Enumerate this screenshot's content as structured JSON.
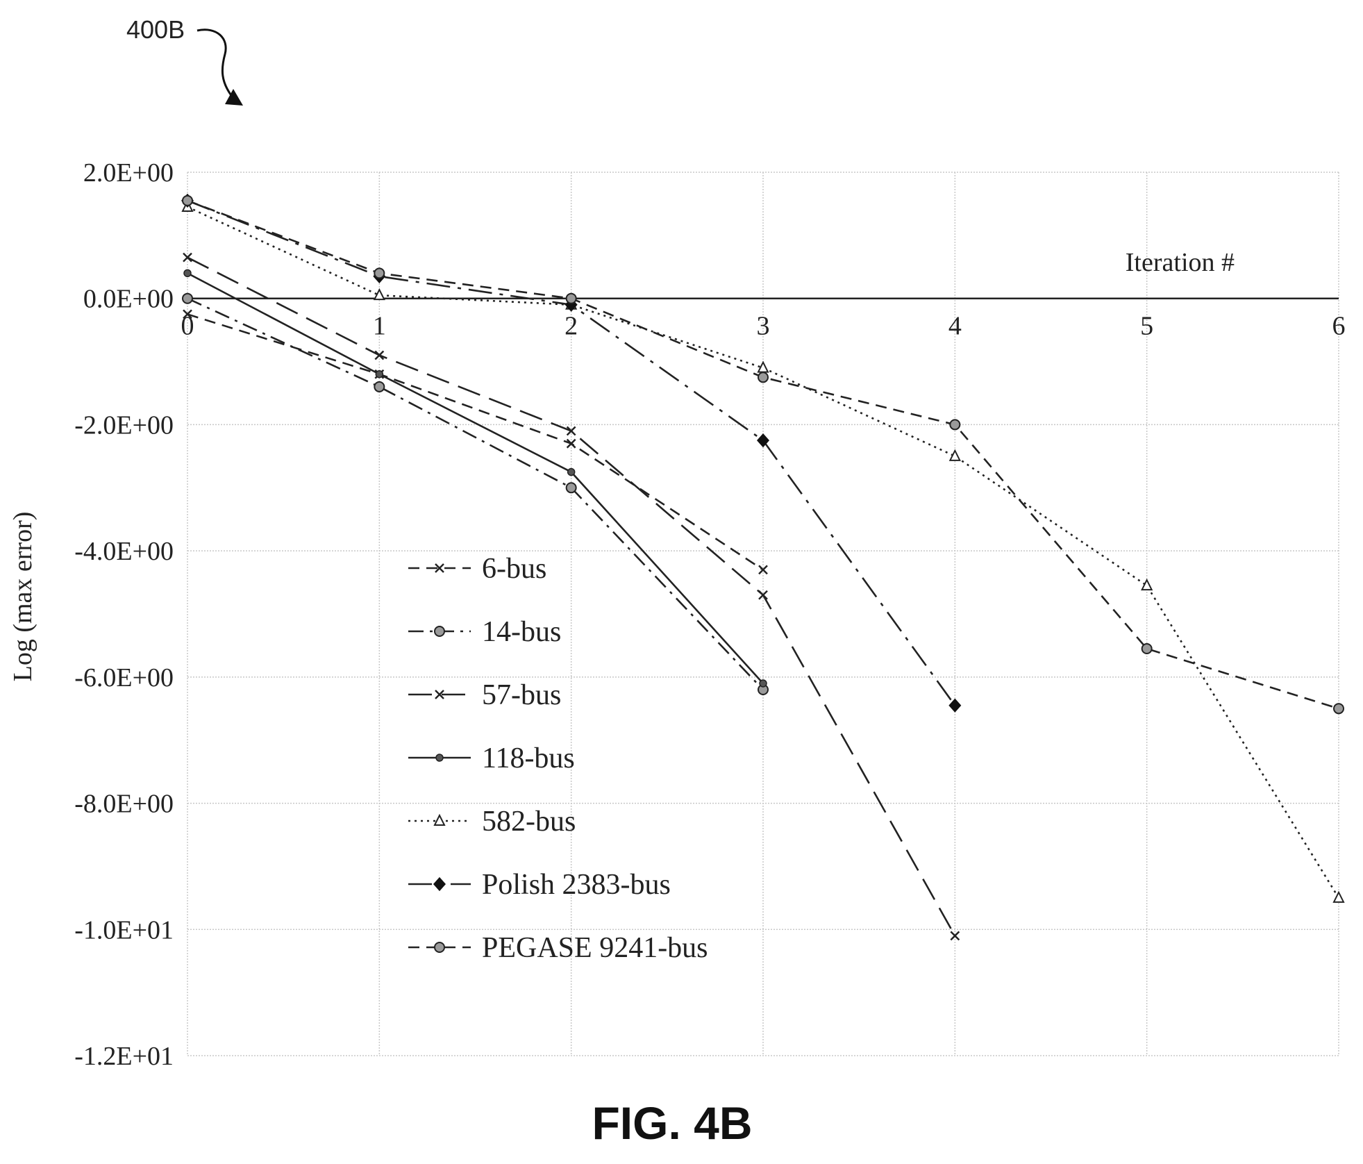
{
  "figure": {
    "ref_label": "400B",
    "caption": "FIG. 4B"
  },
  "chart_data": {
    "type": "line",
    "title": "",
    "xlabel": "Iteration #",
    "ylabel": "Log (max error)",
    "x_ticks": [
      "0",
      "1",
      "2",
      "3",
      "4",
      "5",
      "6"
    ],
    "y_ticks": [
      "2.0E+00",
      "0.0E+00",
      "-2.0E+00",
      "-4.0E+00",
      "-6.0E+00",
      "-8.0E+00",
      "-1.0E+01",
      "-1.2E+01"
    ],
    "xlim": [
      0,
      6
    ],
    "ylim": [
      -12,
      2
    ],
    "grid": true,
    "legend_position": "bottom-center",
    "series": [
      {
        "name": "6-bus",
        "dash": "dashed",
        "marker": "x",
        "x": [
          0,
          1,
          2,
          3
        ],
        "y": [
          -0.25,
          -1.2,
          -2.3,
          -4.3
        ]
      },
      {
        "name": "14-bus",
        "dash": "dashdot",
        "marker": "circle",
        "x": [
          0,
          1,
          2,
          3
        ],
        "y": [
          0.0,
          -1.4,
          -3.0,
          -6.2
        ]
      },
      {
        "name": "57-bus",
        "dash": "longdash",
        "marker": "x",
        "x": [
          0,
          1,
          2,
          3,
          4
        ],
        "y": [
          0.65,
          -0.9,
          -2.1,
          -4.7,
          -10.1
        ]
      },
      {
        "name": "118-bus",
        "dash": "solid",
        "marker": "dot",
        "x": [
          0,
          1,
          2,
          3
        ],
        "y": [
          0.4,
          -1.2,
          -2.75,
          -6.1
        ]
      },
      {
        "name": "582-bus",
        "dash": "dotted",
        "marker": "triangle",
        "x": [
          0,
          1,
          2,
          3,
          4,
          5,
          6
        ],
        "y": [
          1.45,
          0.05,
          -0.1,
          -1.1,
          -2.5,
          -4.55,
          -9.5
        ]
      },
      {
        "name": "Polish 2383-bus",
        "dash": "longdashdot",
        "marker": "diamond",
        "x": [
          0,
          1,
          2,
          3,
          4
        ],
        "y": [
          1.55,
          0.35,
          -0.1,
          -2.25,
          -6.45
        ]
      },
      {
        "name": "PEGASE 9241-bus",
        "dash": "dashed",
        "marker": "circle",
        "x": [
          0,
          1,
          2,
          3,
          4,
          5,
          6
        ],
        "y": [
          1.55,
          0.4,
          0.0,
          -1.25,
          -2.0,
          -5.55,
          -6.5
        ]
      }
    ]
  }
}
